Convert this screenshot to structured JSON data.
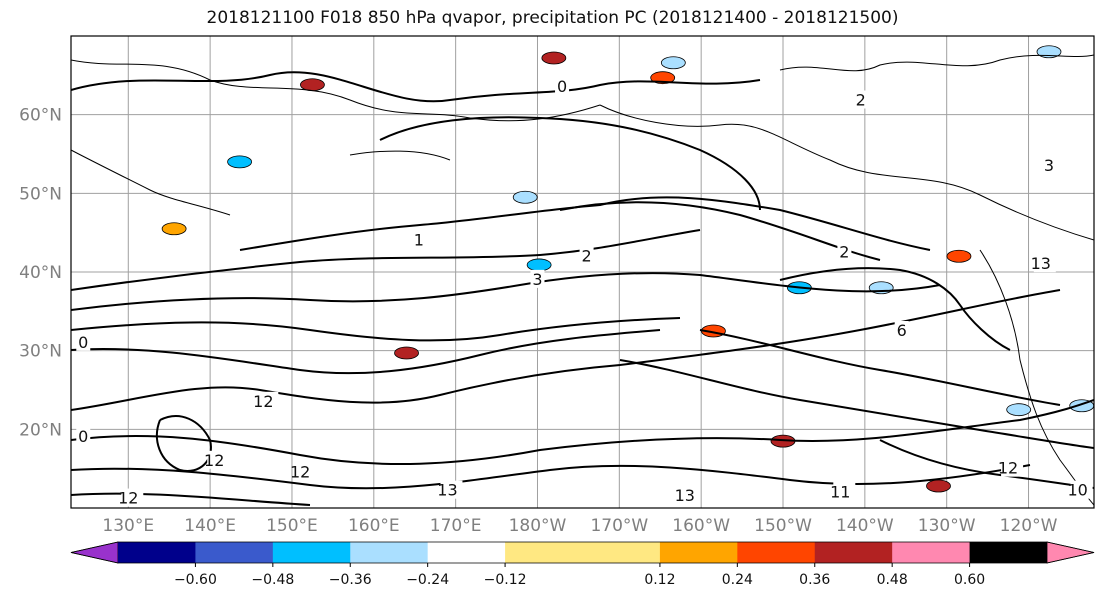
{
  "chart_data": {
    "type": "contour map",
    "title": "2018121100 F018 850 hPa qvapor, precipitation PC (2018121400 - 2018121500)",
    "lat_ticks": [
      "60°N",
      "50°N",
      "40°N",
      "30°N",
      "20°N"
    ],
    "lat_values": [
      60,
      50,
      40,
      30,
      20
    ],
    "lon_ticks": [
      "130°E",
      "140°E",
      "150°E",
      "160°E",
      "170°E",
      "180°W",
      "170°W",
      "160°W",
      "150°W",
      "140°W",
      "130°W",
      "120°W"
    ],
    "lon_values": [
      130,
      140,
      150,
      160,
      170,
      180,
      190,
      200,
      210,
      220,
      230,
      240
    ],
    "extent": {
      "lon": [
        123,
        248
      ],
      "lat": [
        10,
        70
      ]
    },
    "grid": true,
    "contour_labels": [
      {
        "text": "0",
        "lon": 183,
        "lat": 63.5
      },
      {
        "text": "0",
        "lon": 124.5,
        "lat": 31
      },
      {
        "text": "0",
        "lon": 124.5,
        "lat": 19
      },
      {
        "text": "2",
        "lon": 219.5,
        "lat": 61.8
      },
      {
        "text": "3",
        "lon": 242.5,
        "lat": 53.5
      },
      {
        "text": "1",
        "lon": 165.5,
        "lat": 44
      },
      {
        "text": "2",
        "lon": 186,
        "lat": 42
      },
      {
        "text": "3",
        "lon": 180,
        "lat": 39
      },
      {
        "text": "2",
        "lon": 217.5,
        "lat": 42.5
      },
      {
        "text": "6",
        "lon": 224.5,
        "lat": 32.5
      },
      {
        "text": "13",
        "lon": 241.5,
        "lat": 41
      },
      {
        "text": "12",
        "lon": 146.5,
        "lat": 23.5
      },
      {
        "text": "12",
        "lon": 140.5,
        "lat": 16
      },
      {
        "text": "12",
        "lon": 151,
        "lat": 14.5
      },
      {
        "text": "13",
        "lon": 169,
        "lat": 12.2
      },
      {
        "text": "13",
        "lon": 198,
        "lat": 11.5
      },
      {
        "text": "11",
        "lon": 217,
        "lat": 12
      },
      {
        "text": "12",
        "lon": 237.5,
        "lat": 15
      },
      {
        "text": "10",
        "lon": 246,
        "lat": 12.2
      },
      {
        "text": "12",
        "lon": 130,
        "lat": 11.2
      }
    ],
    "colorbar": {
      "levels": [
        -0.72,
        -0.6,
        -0.48,
        -0.36,
        -0.24,
        -0.12,
        0.12,
        0.24,
        0.36,
        0.48,
        0.6,
        0.72
      ],
      "tick_labels": [
        "−0.60",
        "−0.48",
        "−0.36",
        "−0.24",
        "−0.12",
        "0.12",
        "0.24",
        "0.36",
        "0.48",
        "0.60"
      ],
      "colors": [
        "#9932cc",
        "#00008b",
        "#3a5acc",
        "#00bfff",
        "#aadfff",
        "#ffffff",
        "#ffe882",
        "#ffa500",
        "#ff4500",
        "#b22222",
        "#ff88b0"
      ],
      "extend": "both"
    },
    "precip_patches": [
      {
        "lon": 135.6,
        "lat": 45.5,
        "value": 0.2
      },
      {
        "lon": 143.6,
        "lat": 54.0,
        "value": -0.4
      },
      {
        "lon": 152.5,
        "lat": 63.8,
        "value": 0.36
      },
      {
        "lon": 164.0,
        "lat": 29.7,
        "value": 0.45
      },
      {
        "lon": 178.5,
        "lat": 49.5,
        "value": -0.35
      },
      {
        "lon": 180.2,
        "lat": 40.9,
        "value": -0.4
      },
      {
        "lon": 182.0,
        "lat": 67.2,
        "value": 0.42
      },
      {
        "lon": 195.3,
        "lat": 64.7,
        "value": 0.3
      },
      {
        "lon": 201.5,
        "lat": 32.5,
        "value": 0.3
      },
      {
        "lon": 212.0,
        "lat": 38.0,
        "value": -0.4
      },
      {
        "lon": 210.0,
        "lat": 18.5,
        "value": 0.36
      },
      {
        "lon": 222.0,
        "lat": 38.0,
        "value": -0.3
      },
      {
        "lon": 229.0,
        "lat": 12.8,
        "value": 0.42
      },
      {
        "lon": 242.5,
        "lat": 68.0,
        "value": -0.3
      },
      {
        "lon": 246.5,
        "lat": 23.0,
        "value": -0.35
      },
      {
        "lon": 231.5,
        "lat": 42.0,
        "value": 0.3
      },
      {
        "lon": 196.6,
        "lat": 66.6,
        "value": -0.25
      },
      {
        "lon": 238.8,
        "lat": 22.5,
        "value": -0.3
      }
    ]
  }
}
